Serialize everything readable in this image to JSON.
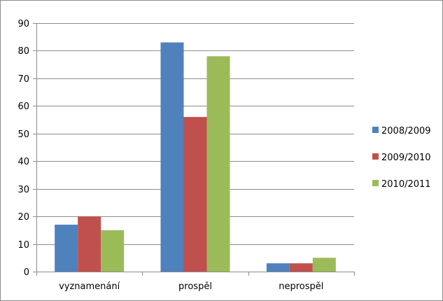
{
  "chart_data": {
    "type": "bar",
    "categories": [
      "vyznamenání",
      "prospěl",
      "neprospěl"
    ],
    "series": [
      {
        "name": "2008/2009",
        "values": [
          17,
          83,
          3
        ],
        "color": "#4f81bd"
      },
      {
        "name": "2009/2010",
        "values": [
          20,
          56,
          3
        ],
        "color": "#c0504d"
      },
      {
        "name": "2010/2011",
        "values": [
          15,
          78,
          5
        ],
        "color": "#9bbb59"
      }
    ],
    "ylim": [
      0,
      90
    ],
    "yticks": [
      0,
      10,
      20,
      30,
      40,
      50,
      60,
      70,
      80,
      90
    ],
    "grid": true,
    "legend": "right",
    "gridColor": "#8c8c8c",
    "axisColor": "#8c8c8c"
  }
}
